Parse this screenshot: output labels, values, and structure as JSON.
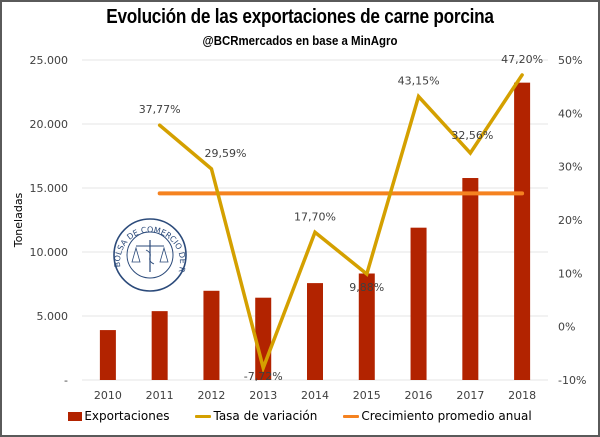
{
  "chart_data": {
    "type": "bar",
    "title": "Evolución de las exportaciones de carne porcina",
    "subtitle": "@BCRmercados  en base a MinAgro",
    "categories": [
      "2010",
      "2011",
      "2012",
      "2013",
      "2014",
      "2015",
      "2016",
      "2017",
      "2018"
    ],
    "series": [
      {
        "name": "Exportaciones",
        "type": "bar",
        "axis": "left",
        "color": "#B22300",
        "values": [
          3900,
          5380,
          6970,
          6430,
          7570,
          8320,
          11900,
          15780,
          23230
        ]
      },
      {
        "name": "Tasa de variación",
        "type": "line",
        "axis": "right",
        "color": "#D4A000",
        "values": [
          null,
          37.77,
          29.59,
          -7.72,
          17.7,
          9.88,
          43.15,
          32.56,
          47.2
        ],
        "labels": [
          null,
          "37,77%",
          "29,59%",
          "-7,72%",
          "17,70%",
          "9,88%",
          "43,15%",
          "32,56%",
          "47,20%"
        ]
      },
      {
        "name": "Crecimiento promedio anual",
        "type": "line",
        "axis": "right",
        "color": "#F58220",
        "values": [
          null,
          25,
          25,
          25,
          25,
          25,
          25,
          25,
          25
        ]
      }
    ],
    "ylabel": "Toneladas",
    "ylim": [
      0,
      25000
    ],
    "yticks": [
      0,
      5000,
      10000,
      15000,
      20000,
      25000
    ],
    "ytick_labels": [
      "-",
      "5.000",
      "10.000",
      "15.000",
      "20.000",
      "25.000"
    ],
    "y2lim": [
      -10,
      50
    ],
    "y2ticks": [
      -10,
      0,
      10,
      20,
      30,
      40,
      50
    ],
    "y2tick_labels": [
      "-10%",
      "0%",
      "10%",
      "20%",
      "30%",
      "40%",
      "50%"
    ],
    "grid": true,
    "legend_position": "bottom",
    "watermark": "BOLSA DE COMERCIO DE ROSARIO"
  }
}
